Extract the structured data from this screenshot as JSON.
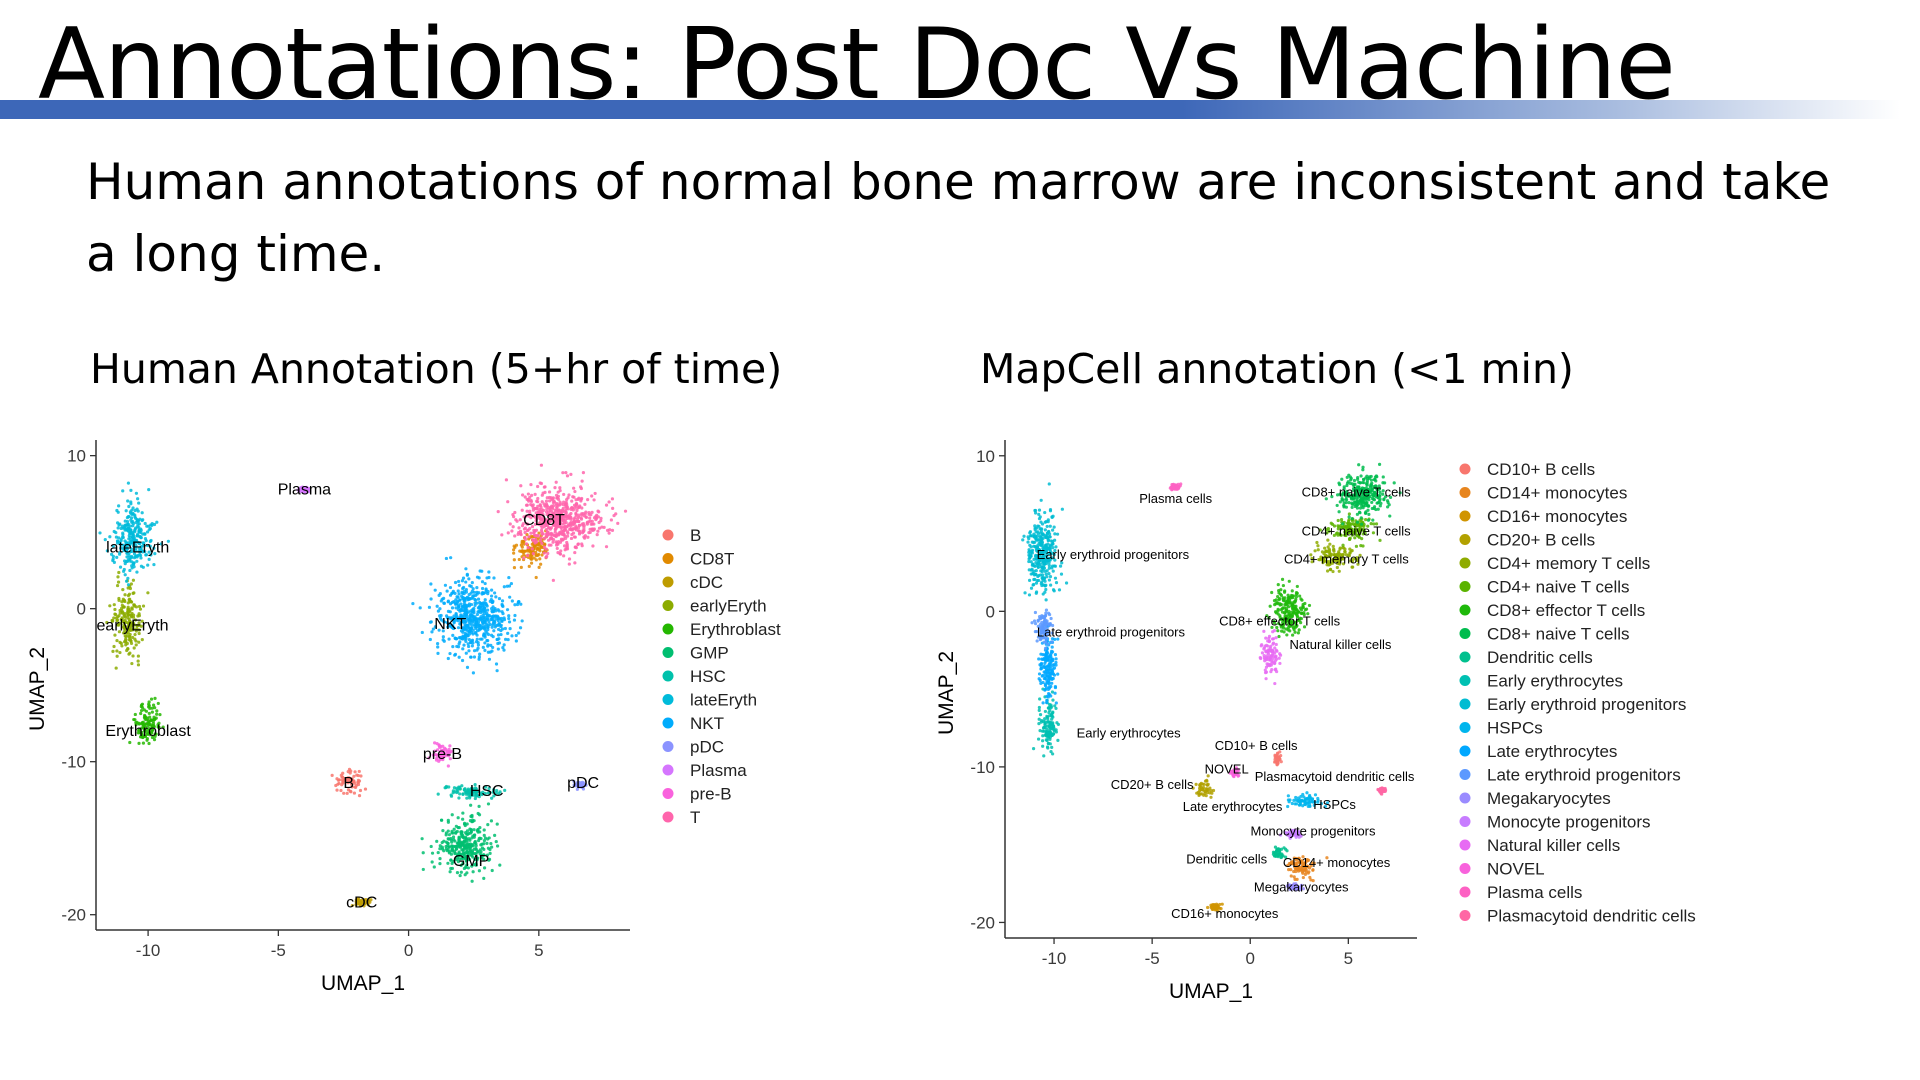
{
  "slide": {
    "title": "Annotations: Post Doc Vs Machine",
    "bullet": "Human annotations of normal bone marrow are inconsistent and take a long time.",
    "left_heading": "Human Annotation (5+hr of time)",
    "right_heading": "MapCell annotation (<1 min)",
    "accent_color": "#3d67b8"
  },
  "chart_data": [
    {
      "type": "scatter",
      "title": "",
      "xlabel": "UMAP_1",
      "ylabel": "UMAP_2",
      "xlim": [
        -12,
        8.5
      ],
      "ylim": [
        -21,
        10.5
      ],
      "xticks": [
        -10,
        -5,
        0,
        5
      ],
      "yticks": [
        10,
        0,
        -10,
        -20
      ],
      "grid": false,
      "legend_position": "right",
      "series": [
        {
          "name": "B",
          "color": "#f8766d",
          "x": -2.3,
          "y": -11.3,
          "spread": [
            0.5,
            0.7
          ]
        },
        {
          "name": "CD8T",
          "color": "#e18a00",
          "x": 4.8,
          "y": 3.9,
          "spread": [
            0.6,
            1.0
          ]
        },
        {
          "name": "cDC",
          "color": "#be9c00",
          "x": -1.8,
          "y": -19.2,
          "spread": [
            0.3,
            0.2
          ]
        },
        {
          "name": "earlyEryth",
          "color": "#8cab00",
          "x": -10.8,
          "y": -0.8,
          "spread": [
            0.5,
            2.0
          ]
        },
        {
          "name": "Erythroblast",
          "color": "#24b700",
          "x": -10.0,
          "y": -7.5,
          "spread": [
            0.5,
            1.2
          ]
        },
        {
          "name": "GMP",
          "color": "#00be70",
          "x": 2.2,
          "y": -15.5,
          "spread": [
            1.0,
            1.6
          ]
        },
        {
          "name": "HSC",
          "color": "#00c1ab",
          "x": 2.4,
          "y": -12.0,
          "spread": [
            0.9,
            0.5
          ]
        },
        {
          "name": "lateEryth",
          "color": "#00bbda",
          "x": -10.6,
          "y": 4.5,
          "spread": [
            0.7,
            2.0
          ]
        },
        {
          "name": "NKT",
          "color": "#00acfc",
          "x": 2.5,
          "y": -0.5,
          "spread": [
            1.3,
            2.3
          ]
        },
        {
          "name": "pDC",
          "color": "#8b93ff",
          "x": 6.6,
          "y": -11.5,
          "spread": [
            0.2,
            0.2
          ]
        },
        {
          "name": "Plasma",
          "color": "#d575fe",
          "x": -4.0,
          "y": 7.8,
          "spread": [
            0.2,
            0.2
          ]
        },
        {
          "name": "pre-B",
          "color": "#f962dd",
          "x": 1.3,
          "y": -9.5,
          "spread": [
            0.4,
            0.7
          ]
        },
        {
          "name": "T",
          "color": "#ff65ac",
          "x": 5.8,
          "y": 5.8,
          "spread": [
            1.5,
            2.0
          ]
        }
      ],
      "annotations": [
        "Plasma",
        "CD8T",
        "lateEryth",
        "earlyEryth",
        "NKT",
        "Erythroblast",
        "pre-B",
        "B",
        "HSC",
        "pDC",
        "GMP",
        "cDC"
      ]
    },
    {
      "type": "scatter",
      "title": "",
      "xlabel": "UMAP_1",
      "ylabel": "UMAP_2",
      "xlim": [
        -12.5,
        8.5
      ],
      "ylim": [
        -21,
        10.5
      ],
      "xticks": [
        -10,
        -5,
        0,
        5
      ],
      "yticks": [
        10,
        0,
        -10,
        -20
      ],
      "grid": false,
      "legend_position": "right",
      "series": [
        {
          "name": "CD10+ B cells",
          "color": "#f8766d",
          "x": 1.4,
          "y": -9.5,
          "spread": [
            0.2,
            0.4
          ]
        },
        {
          "name": "CD14+ monocytes",
          "color": "#e7851e",
          "x": 2.6,
          "y": -16.4,
          "spread": [
            0.7,
            0.6
          ]
        },
        {
          "name": "CD16+ monocytes",
          "color": "#d09400",
          "x": -1.8,
          "y": -19.0,
          "spread": [
            0.3,
            0.2
          ]
        },
        {
          "name": "CD20+ B cells",
          "color": "#b2a100",
          "x": -2.4,
          "y": -11.4,
          "spread": [
            0.4,
            0.6
          ]
        },
        {
          "name": "CD4+ memory T cells",
          "color": "#8fab00",
          "x": 4.3,
          "y": 3.5,
          "spread": [
            0.9,
            0.7
          ]
        },
        {
          "name": "CD4+ naive T cells",
          "color": "#5bb300",
          "x": 5.2,
          "y": 5.3,
          "spread": [
            1.0,
            0.7
          ]
        },
        {
          "name": "CD8+ effector T cells",
          "color": "#1fb90b",
          "x": 2.0,
          "y": 0.0,
          "spread": [
            0.8,
            1.3
          ]
        },
        {
          "name": "CD8+ naive T cells",
          "color": "#00bc4e",
          "x": 5.8,
          "y": 7.5,
          "spread": [
            1.2,
            1.2
          ]
        },
        {
          "name": "Dendritic cells",
          "color": "#00c08e",
          "x": 1.5,
          "y": -15.5,
          "spread": [
            0.3,
            0.4
          ]
        },
        {
          "name": "Early erythrocytes",
          "color": "#00c0b2",
          "x": -10.3,
          "y": -7.2,
          "spread": [
            0.4,
            1.5
          ]
        },
        {
          "name": "Early erythroid progenitors",
          "color": "#00bcd2",
          "x": -10.6,
          "y": 3.8,
          "spread": [
            0.7,
            2.3
          ]
        },
        {
          "name": "HSPCs",
          "color": "#00b5ed",
          "x": 2.8,
          "y": -12.2,
          "spread": [
            0.8,
            0.4
          ]
        },
        {
          "name": "Late erythrocytes",
          "color": "#00a8ff",
          "x": -10.3,
          "y": -3.5,
          "spread": [
            0.4,
            2.0
          ]
        },
        {
          "name": "Late erythroid progenitors",
          "color": "#5c99ff",
          "x": -10.5,
          "y": -1.0,
          "spread": [
            0.4,
            1.2
          ]
        },
        {
          "name": "Megakaryocytes",
          "color": "#9a8bff",
          "x": 2.2,
          "y": -17.7,
          "spread": [
            0.3,
            0.2
          ]
        },
        {
          "name": "Monocyte progenitors",
          "color": "#c77cff",
          "x": 2.2,
          "y": -14.3,
          "spread": [
            0.4,
            0.3
          ]
        },
        {
          "name": "Natural killer cells",
          "color": "#e76bf3",
          "x": 1.0,
          "y": -2.8,
          "spread": [
            0.4,
            1.2
          ]
        },
        {
          "name": "NOVEL",
          "color": "#f862dc",
          "x": -0.8,
          "y": -10.4,
          "spread": [
            0.2,
            0.2
          ]
        },
        {
          "name": "Plasma cells",
          "color": "#fd61c3",
          "x": -3.8,
          "y": 8.0,
          "spread": [
            0.2,
            0.2
          ]
        },
        {
          "name": "Plasmacytoid dendritic cells",
          "color": "#ff67a4",
          "x": 6.7,
          "y": -11.5,
          "spread": [
            0.2,
            0.2
          ]
        }
      ],
      "annotations": [
        "Plasma cells",
        "CD8+ naive T cells",
        "CD4+ naive T cells",
        "CD4+ memory T cells",
        "Early erythroid progenitors",
        "CD8+ effector T cells",
        "Late erythroid progenitors",
        "Natural killer cells",
        "Early erythrocytes",
        "CD10+ B cells",
        "NOVEL",
        "Plasmacytoid dendritic cells",
        "CD20+ B cells",
        "HSPCs",
        "Late erythrocytes",
        "Monocyte progenitors",
        "Dendritic cells",
        "CD14+ monocytes",
        "Megakaryocytes",
        "CD16+ monocytes"
      ]
    }
  ]
}
